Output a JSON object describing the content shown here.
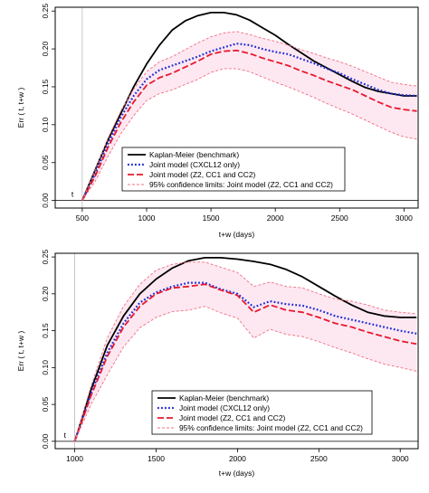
{
  "chart_data": [
    {
      "type": "line",
      "title": "",
      "xlabel": "t+w (days)",
      "ylabel": "Err ( t, t+w )",
      "xlim": [
        290,
        3110
      ],
      "ylim": [
        -0.01,
        0.255
      ],
      "xticks": [
        "500",
        "1000",
        "1500",
        "2000",
        "2500",
        "3000"
      ],
      "yticks": [
        "0.00",
        "0.05",
        "0.10",
        "0.15",
        "0.20",
        "0.25"
      ],
      "t_marker": {
        "label": "t",
        "x": 500
      },
      "band_color": "#fde8f2",
      "legend_position": "lower-center",
      "series": [
        {
          "name": "Kaplan-Meier (benchmark)",
          "color": "#000000",
          "style": "solid",
          "x": [
            500,
            600,
            700,
            800,
            900,
            1000,
            1100,
            1200,
            1300,
            1400,
            1500,
            1600,
            1700,
            1800,
            1900,
            2000,
            2100,
            2200,
            2300,
            2400,
            2500,
            2600,
            2700,
            2800,
            2900,
            3000,
            3100
          ],
          "y": [
            0.0,
            0.04,
            0.08,
            0.115,
            0.15,
            0.18,
            0.205,
            0.225,
            0.237,
            0.244,
            0.248,
            0.248,
            0.245,
            0.238,
            0.228,
            0.218,
            0.206,
            0.195,
            0.184,
            0.175,
            0.166,
            0.157,
            0.149,
            0.144,
            0.141,
            0.138,
            0.138
          ]
        },
        {
          "name": "Joint model (CXCL12 only)",
          "color": "#1f2bd6",
          "style": "dotted",
          "x": [
            500,
            600,
            700,
            800,
            900,
            1000,
            1100,
            1200,
            1300,
            1400,
            1500,
            1600,
            1700,
            1800,
            1900,
            2000,
            2100,
            2200,
            2300,
            2400,
            2500,
            2600,
            2700,
            2800,
            2900,
            3000,
            3100
          ],
          "y": [
            0.0,
            0.035,
            0.075,
            0.11,
            0.138,
            0.16,
            0.172,
            0.178,
            0.184,
            0.19,
            0.197,
            0.202,
            0.207,
            0.205,
            0.2,
            0.196,
            0.193,
            0.187,
            0.181,
            0.174,
            0.168,
            0.16,
            0.153,
            0.146,
            0.141,
            0.139,
            0.138
          ]
        },
        {
          "name": "Joint model (Z2, CC1 and CC2)",
          "color": "#e8182c",
          "style": "dashed",
          "x": [
            500,
            600,
            700,
            800,
            900,
            1000,
            1100,
            1200,
            1300,
            1400,
            1500,
            1600,
            1700,
            1800,
            1900,
            2000,
            2100,
            2200,
            2300,
            2400,
            2500,
            2600,
            2700,
            2800,
            2900,
            3000,
            3100
          ],
          "y": [
            0.0,
            0.032,
            0.07,
            0.103,
            0.13,
            0.152,
            0.162,
            0.168,
            0.176,
            0.184,
            0.193,
            0.197,
            0.198,
            0.194,
            0.188,
            0.183,
            0.178,
            0.171,
            0.165,
            0.158,
            0.152,
            0.146,
            0.138,
            0.13,
            0.123,
            0.12,
            0.118
          ]
        },
        {
          "name": "95% confidence limits: Joint model (Z2, CC1 and CC2)",
          "color": "#f07080",
          "style": "dashed-thin",
          "x": [
            500,
            600,
            700,
            800,
            900,
            1000,
            1100,
            1200,
            1300,
            1400,
            1500,
            1600,
            1700,
            1800,
            1900,
            2000,
            2100,
            2200,
            2300,
            2400,
            2500,
            2600,
            2700,
            2800,
            2900,
            3000,
            3100
          ],
          "y": [
            0.0,
            0.04,
            0.082,
            0.118,
            0.147,
            0.17,
            0.183,
            0.19,
            0.199,
            0.208,
            0.216,
            0.221,
            0.223,
            0.219,
            0.214,
            0.21,
            0.205,
            0.199,
            0.194,
            0.188,
            0.183,
            0.177,
            0.17,
            0.163,
            0.156,
            0.153,
            0.151
          ],
          "y_lower": [
            0.0,
            0.025,
            0.058,
            0.088,
            0.112,
            0.132,
            0.141,
            0.146,
            0.153,
            0.16,
            0.169,
            0.174,
            0.174,
            0.17,
            0.163,
            0.156,
            0.15,
            0.143,
            0.136,
            0.128,
            0.121,
            0.114,
            0.106,
            0.098,
            0.09,
            0.084,
            0.081
          ]
        }
      ],
      "grid": false
    },
    {
      "type": "line",
      "title": "",
      "xlabel": "t+w (days)",
      "ylabel": "Err ( t, t+w )",
      "xlim": [
        880,
        3110
      ],
      "ylim": [
        -0.01,
        0.255
      ],
      "xticks": [
        "1000",
        "1500",
        "2000",
        "2500",
        "3000"
      ],
      "yticks": [
        "0.00",
        "0.05",
        "0.10",
        "0.15",
        "0.20",
        "0.25"
      ],
      "t_marker": {
        "label": "t",
        "x": 1000
      },
      "band_color": "#fde8f2",
      "legend_position": "lower-center",
      "series": [
        {
          "name": "Kaplan-Meier (benchmark)",
          "color": "#000000",
          "style": "solid",
          "x": [
            1000,
            1100,
            1200,
            1300,
            1400,
            1500,
            1600,
            1700,
            1800,
            1900,
            2000,
            2100,
            2200,
            2300,
            2400,
            2500,
            2600,
            2700,
            2800,
            2900,
            3000,
            3100
          ],
          "y": [
            0.0,
            0.07,
            0.13,
            0.17,
            0.2,
            0.22,
            0.235,
            0.245,
            0.249,
            0.249,
            0.247,
            0.244,
            0.24,
            0.233,
            0.223,
            0.21,
            0.197,
            0.185,
            0.175,
            0.17,
            0.168,
            0.168
          ]
        },
        {
          "name": "Joint model (CXCL12 only)",
          "color": "#1f2bd6",
          "style": "dotted",
          "x": [
            1000,
            1100,
            1200,
            1300,
            1400,
            1500,
            1600,
            1700,
            1800,
            1900,
            2000,
            2100,
            2200,
            2300,
            2400,
            2500,
            2600,
            2700,
            2800,
            2900,
            3000,
            3100
          ],
          "y": [
            0.0,
            0.065,
            0.12,
            0.16,
            0.188,
            0.202,
            0.21,
            0.215,
            0.215,
            0.206,
            0.2,
            0.182,
            0.19,
            0.186,
            0.184,
            0.178,
            0.17,
            0.165,
            0.16,
            0.155,
            0.15,
            0.146
          ]
        },
        {
          "name": "Joint model (Z2, CC1 and CC2)",
          "color": "#e8182c",
          "style": "dashed",
          "x": [
            1000,
            1100,
            1200,
            1300,
            1400,
            1500,
            1600,
            1700,
            1800,
            1900,
            2000,
            2100,
            2200,
            2300,
            2400,
            2500,
            2600,
            2700,
            2800,
            2900,
            3000,
            3100
          ],
          "y": [
            0.0,
            0.062,
            0.115,
            0.155,
            0.183,
            0.2,
            0.208,
            0.21,
            0.213,
            0.205,
            0.198,
            0.175,
            0.185,
            0.178,
            0.175,
            0.168,
            0.16,
            0.155,
            0.148,
            0.142,
            0.136,
            0.132
          ]
        },
        {
          "name": "95% confidence limits: Joint model (Z2, CC1 and CC2)",
          "color": "#f07080",
          "style": "dashed-thin",
          "x": [
            1000,
            1100,
            1200,
            1300,
            1400,
            1500,
            1600,
            1700,
            1800,
            1900,
            2000,
            2100,
            2200,
            2300,
            2400,
            2500,
            2600,
            2700,
            2800,
            2900,
            3000,
            3100
          ],
          "y": [
            0.0,
            0.075,
            0.14,
            0.183,
            0.213,
            0.232,
            0.24,
            0.243,
            0.243,
            0.236,
            0.229,
            0.21,
            0.216,
            0.21,
            0.208,
            0.2,
            0.193,
            0.19,
            0.185,
            0.178,
            0.175,
            0.173
          ],
          "y_lower": [
            0.0,
            0.05,
            0.09,
            0.128,
            0.154,
            0.168,
            0.176,
            0.178,
            0.183,
            0.174,
            0.167,
            0.14,
            0.152,
            0.145,
            0.142,
            0.135,
            0.127,
            0.12,
            0.112,
            0.105,
            0.1,
            0.095
          ]
        }
      ],
      "grid": false
    }
  ]
}
